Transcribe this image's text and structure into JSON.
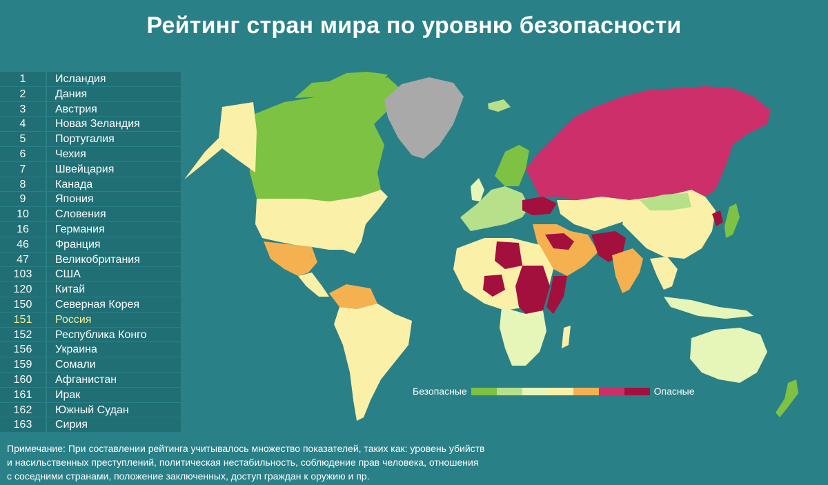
{
  "title": "Рейтинг стран мира по уровню безопасности",
  "ranking": [
    {
      "rank": "1",
      "country": "Исландия"
    },
    {
      "rank": "2",
      "country": "Дания"
    },
    {
      "rank": "3",
      "country": "Австрия"
    },
    {
      "rank": "4",
      "country": "Новая Зеландия"
    },
    {
      "rank": "5",
      "country": "Португалия"
    },
    {
      "rank": "6",
      "country": "Чехия"
    },
    {
      "rank": "7",
      "country": "Швейцария"
    },
    {
      "rank": "8",
      "country": "Канада"
    },
    {
      "rank": "9",
      "country": "Япония"
    },
    {
      "rank": "10",
      "country": "Словения"
    },
    {
      "rank": "16",
      "country": "Германия"
    },
    {
      "rank": "46",
      "country": "Франция"
    },
    {
      "rank": "47",
      "country": "Великобритания"
    },
    {
      "rank": "103",
      "country": "США"
    },
    {
      "rank": "120",
      "country": "Китай"
    },
    {
      "rank": "150",
      "country": "Северная Корея"
    },
    {
      "rank": "151",
      "country": "Россия"
    },
    {
      "rank": "152",
      "country": "Республика Конго"
    },
    {
      "rank": "156",
      "country": "Украина"
    },
    {
      "rank": "159",
      "country": "Сомали"
    },
    {
      "rank": "160",
      "country": "Афганистан"
    },
    {
      "rank": "161",
      "country": "Ирак"
    },
    {
      "rank": "162",
      "country": "Южный Судан"
    },
    {
      "rank": "163",
      "country": "Сирия"
    }
  ],
  "highlight_country": "Россия",
  "legend": {
    "safe_label": "Безопасные",
    "danger_label": "Опасные",
    "scale_colors": [
      "#7dc242",
      "#b6e08a",
      "#e6f5b8",
      "#fbf0a8",
      "#f5b04f",
      "#cc2f6a",
      "#a3103e"
    ]
  },
  "colors": {
    "background": "#2a8087",
    "row_background": "#1f6f75",
    "no_data": "#a9a9a9",
    "highlight_text": "#f3f09a"
  },
  "note": {
    "line1": "Примечание: При составлении рейтинга учитывалось множество показателей, таких как: уровень убийств",
    "line2": "и насильственных преступлений, политическая нестабильность, соблюдение прав человека, отношения",
    "line3": "с соседними странами, положение заключенных, доступ граждан к оружию и пр."
  }
}
